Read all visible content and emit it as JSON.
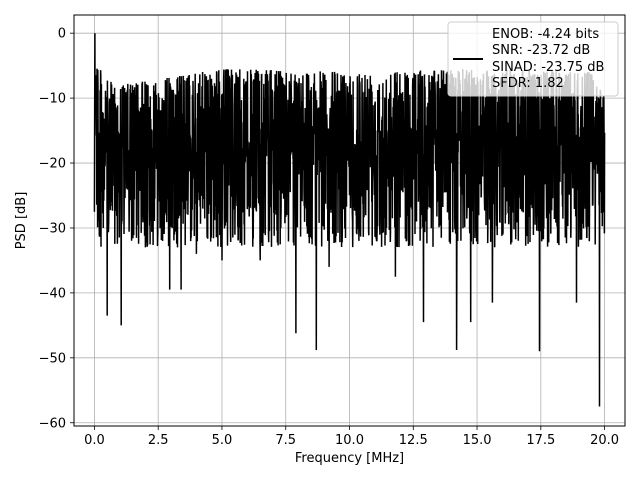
{
  "chart_data": {
    "type": "line",
    "xlabel": "Frequency [MHz]",
    "ylabel": "PSD [dB]",
    "xlim": [
      -0.8,
      20.8
    ],
    "ylim": [
      -60.5,
      2.8
    ],
    "xticks": [
      0.0,
      2.5,
      5.0,
      7.5,
      10.0,
      12.5,
      15.0,
      17.5,
      20.0
    ],
    "xtick_labels": [
      "0.0",
      "2.5",
      "5.0",
      "7.5",
      "10.0",
      "12.5",
      "15.0",
      "17.5",
      "20.0"
    ],
    "yticks": [
      0,
      -10,
      -20,
      -30,
      -40,
      -50,
      -60
    ],
    "ytick_labels": [
      "0",
      "−10",
      "−20",
      "−30",
      "−40",
      "−50",
      "−60"
    ],
    "grid": true,
    "legend_placement": "upper right",
    "series": [
      {
        "color": "#000000",
        "label_lines": [
          "ENOB: -4.24 bits",
          "SNR: -23.72 dB",
          "SINAD: -23.75 dB",
          "SFDR: 1.82"
        ],
        "x_range": [
          0.0,
          20.0
        ],
        "peak": {
          "x": 0.02,
          "y": 0.0
        },
        "upper_envelope": {
          "x": [
            0.0,
            0.3,
            1.0,
            5.0,
            10.0,
            15.0,
            19.5,
            20.0
          ],
          "y": [
            0.0,
            -7,
            -8,
            -5.5,
            -6,
            -5.5,
            -6,
            -10
          ]
        },
        "noise_floor_mean": -18,
        "dips": [
          {
            "x": 0.15,
            "y": -27
          },
          {
            "x": 0.35,
            "y": -30
          },
          {
            "x": 0.5,
            "y": -43.5
          },
          {
            "x": 1.05,
            "y": -45
          },
          {
            "x": 2.0,
            "y": -33
          },
          {
            "x": 2.95,
            "y": -39.5
          },
          {
            "x": 3.4,
            "y": -39.5
          },
          {
            "x": 4.0,
            "y": -34
          },
          {
            "x": 5.0,
            "y": -35
          },
          {
            "x": 6.5,
            "y": -35
          },
          {
            "x": 7.9,
            "y": -46.2
          },
          {
            "x": 8.7,
            "y": -48.8
          },
          {
            "x": 9.2,
            "y": -36
          },
          {
            "x": 11.8,
            "y": -37.5
          },
          {
            "x": 12.9,
            "y": -44.5
          },
          {
            "x": 14.2,
            "y": -48.8
          },
          {
            "x": 14.75,
            "y": -44.5
          },
          {
            "x": 15.6,
            "y": -41.5
          },
          {
            "x": 17.45,
            "y": -49
          },
          {
            "x": 18.9,
            "y": -41.5
          },
          {
            "x": 19.8,
            "y": -57.5
          }
        ]
      }
    ]
  }
}
